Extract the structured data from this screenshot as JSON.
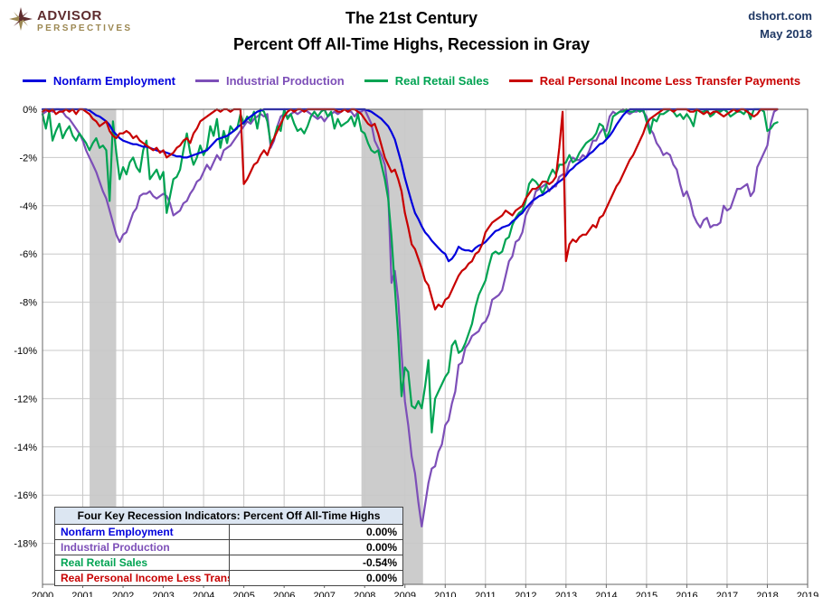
{
  "header": {
    "logo_line1": "ADVISOR",
    "logo_line2": "PERSPECTIVES",
    "title_line1": "The 21st Century",
    "title_line2": "Percent Off All-Time Highs, Recession in Gray",
    "source": "dshort.com",
    "date": "May 2018"
  },
  "inset": {
    "title": "Four Key Recession Indicators: Percent Off All-Time Highs",
    "rows": [
      {
        "label": "Nonfarm Employment",
        "value": "0.00%"
      },
      {
        "label": "Industrial Production",
        "value": "0.00%"
      },
      {
        "label": "Real Retail Sales",
        "value": "-0.54%"
      },
      {
        "label": "Real Personal Income Less Transfer Payments",
        "value": "0.00%"
      }
    ]
  },
  "chart_data": {
    "type": "line",
    "title": "The 21st Century — Percent Off All-Time Highs, Recession in Gray",
    "x_start": 2000,
    "points_per_year": 12,
    "x_range": [
      2000,
      2019
    ],
    "y_top": 0,
    "y_bottom": -19.7,
    "x_ticks": [
      2000,
      2001,
      2002,
      2003,
      2004,
      2005,
      2006,
      2007,
      2008,
      2009,
      2010,
      2011,
      2012,
      2013,
      2014,
      2015,
      2016,
      2017,
      2018,
      2019
    ],
    "y_ticks": [
      {
        "value": 0,
        "label": "0%"
      },
      {
        "value": -2,
        "label": "-2%"
      },
      {
        "value": -4,
        "label": "-4%"
      },
      {
        "value": -6,
        "label": "-6%"
      },
      {
        "value": -8,
        "label": "-8%"
      },
      {
        "value": -10,
        "label": "-10%"
      },
      {
        "value": -12,
        "label": "-12%"
      },
      {
        "value": -14,
        "label": "-14%"
      },
      {
        "value": -16,
        "label": "-16%"
      },
      {
        "value": -18,
        "label": "-18%"
      }
    ],
    "grid_color": "#c8c8c8",
    "border_color": "#666666",
    "recession_color": "#cccccc",
    "recession_bands": [
      [
        2001.17,
        2001.83
      ],
      [
        2007.92,
        2009.45
      ]
    ],
    "series_order": [
      1,
      2,
      0,
      3
    ],
    "series": [
      {
        "name": "Nonfarm Employment",
        "color": "#0000dd",
        "values": [
          0,
          0,
          0,
          0,
          0,
          0,
          0,
          0,
          0,
          0,
          0,
          0,
          0,
          0,
          -0.05,
          -0.15,
          -0.25,
          -0.3,
          -0.4,
          -0.5,
          -0.65,
          -0.9,
          -1.05,
          -1.2,
          -1.3,
          -1.35,
          -1.4,
          -1.45,
          -1.45,
          -1.5,
          -1.55,
          -1.55,
          -1.6,
          -1.65,
          -1.7,
          -1.75,
          -1.75,
          -1.8,
          -1.85,
          -1.9,
          -1.95,
          -1.95,
          -2,
          -2,
          -1.95,
          -1.9,
          -1.85,
          -1.8,
          -1.75,
          -1.7,
          -1.55,
          -1.4,
          -1.25,
          -1.2,
          -1.15,
          -1.1,
          -1,
          -0.9,
          -0.75,
          -0.65,
          -0.55,
          -0.4,
          -0.3,
          -0.2,
          -0.1,
          -0.05,
          0,
          0,
          0,
          0,
          0,
          0,
          0,
          0,
          0,
          0,
          0,
          0,
          0,
          0,
          0,
          0,
          0,
          0,
          0,
          0,
          0,
          0,
          0,
          0,
          0,
          0,
          0,
          0,
          0,
          0,
          0,
          -0.05,
          -0.1,
          -0.2,
          -0.3,
          -0.4,
          -0.55,
          -0.7,
          -0.95,
          -1.25,
          -1.75,
          -2.25,
          -2.85,
          -3.35,
          -3.85,
          -4.3,
          -4.55,
          -4.85,
          -5.1,
          -5.25,
          -5.45,
          -5.6,
          -5.75,
          -5.9,
          -6,
          -6.3,
          -6.2,
          -6,
          -5.7,
          -5.8,
          -5.85,
          -5.85,
          -5.9,
          -5.75,
          -5.65,
          -5.6,
          -5.5,
          -5.35,
          -5.2,
          -5.05,
          -5,
          -4.9,
          -4.85,
          -4.8,
          -4.65,
          -4.55,
          -4.4,
          -4.3,
          -4.1,
          -3.95,
          -3.8,
          -3.7,
          -3.6,
          -3.55,
          -3.45,
          -3.35,
          -3.25,
          -3.1,
          -3,
          -2.9,
          -2.75,
          -2.55,
          -2.45,
          -2.3,
          -2.2,
          -2.1,
          -2,
          -1.85,
          -1.75,
          -1.6,
          -1.45,
          -1.4,
          -1.25,
          -1.1,
          -0.9,
          -0.65,
          -0.45,
          -0.25,
          -0.1,
          0,
          0,
          0,
          0,
          0,
          0,
          0,
          0,
          0,
          0,
          0,
          0,
          0,
          0,
          0,
          0,
          0,
          0,
          0,
          0,
          0,
          0,
          0,
          0,
          0,
          0,
          0,
          0,
          0,
          0,
          0,
          0,
          0,
          0,
          0,
          0,
          0,
          0,
          0,
          0,
          0,
          0,
          0,
          0,
          0
        ]
      },
      {
        "name": "Industrial Production",
        "color": "#7d4fb8",
        "values": [
          -0.2,
          -0.1,
          0,
          -0.1,
          0,
          0,
          -0.1,
          -0.3,
          -0.4,
          -0.6,
          -0.8,
          -1,
          -1.3,
          -1.7,
          -2,
          -2.3,
          -2.6,
          -3,
          -3.4,
          -3.7,
          -4.2,
          -4.7,
          -5.2,
          -5.5,
          -5.2,
          -5.1,
          -4.7,
          -4.3,
          -4.1,
          -3.6,
          -3.5,
          -3.5,
          -3.4,
          -3.6,
          -3.7,
          -3.6,
          -3.5,
          -3.6,
          -3.9,
          -4.4,
          -4.3,
          -4.2,
          -3.9,
          -3.8,
          -3.5,
          -3.3,
          -3,
          -2.9,
          -2.6,
          -2.3,
          -2.5,
          -2.2,
          -1.9,
          -2.1,
          -1.7,
          -1.6,
          -1.5,
          -1.3,
          -1.1,
          -0.9,
          -0.7,
          -0.5,
          -0.6,
          -0.4,
          -0.3,
          -0.2,
          -0.3,
          -0.2,
          -1.6,
          -1.3,
          -0.7,
          -0.3,
          -0.2,
          -0.3,
          -0.2,
          -0.1,
          -0.2,
          -0.1,
          0,
          -0.1,
          -0.2,
          -0.3,
          -0.4,
          -0.3,
          -0.5,
          -0.3,
          -0.2,
          -0.1,
          -0.2,
          -0.1,
          0,
          -0.1,
          -0.1,
          -0.3,
          -0.1,
          -0.1,
          0,
          -0.3,
          -0.6,
          -1.3,
          -1.6,
          -1.9,
          -2.3,
          -3.4,
          -7.2,
          -6.7,
          -7.9,
          -10.1,
          -12.1,
          -13.1,
          -14.4,
          -15.1,
          -16.3,
          -17.3,
          -16.4,
          -15.5,
          -14.9,
          -14.8,
          -14.2,
          -13.9,
          -13.1,
          -12.9,
          -12.2,
          -11.7,
          -10.6,
          -10.5,
          -9.9,
          -9.7,
          -9.4,
          -9.3,
          -9.2,
          -8.9,
          -8.8,
          -8.5,
          -7.9,
          -7.8,
          -7.7,
          -7.5,
          -6.9,
          -6.3,
          -6.1,
          -5.5,
          -5.4,
          -5.1,
          -4.4,
          -4.1,
          -3.9,
          -3.4,
          -3.3,
          -3.2,
          -3.1,
          -3.4,
          -3.2,
          -3.2,
          -2.8,
          -2.7,
          -2.7,
          -2.2,
          -2,
          -2.1,
          -2.1,
          -1.9,
          -2,
          -1.7,
          -1.3,
          -1.3,
          -1,
          -0.8,
          -0.9,
          -0.3,
          -0.1,
          -0.2,
          -0.1,
          0,
          -0.1,
          -0.2,
          -0.1,
          -0.1,
          0,
          -0.1,
          -0.3,
          -0.8,
          -1,
          -1.4,
          -1.6,
          -1.9,
          -1.8,
          -1.9,
          -2.3,
          -2.5,
          -3.1,
          -3.6,
          -3.4,
          -3.8,
          -4.4,
          -4.7,
          -4.9,
          -4.6,
          -4.5,
          -4.9,
          -4.8,
          -4.8,
          -4.7,
          -4,
          -4.2,
          -4.1,
          -3.7,
          -3.3,
          -3.3,
          -3.2,
          -3.1,
          -3.6,
          -3.4,
          -2.4,
          -2.1,
          -1.8,
          -1.5,
          -0.6,
          -0.1,
          0
        ]
      },
      {
        "name": "Real Retail Sales",
        "color": "#00a352",
        "values": [
          -0.2,
          -0.8,
          -0.1,
          -1.3,
          -0.9,
          -0.6,
          -1.2,
          -0.9,
          -0.7,
          -1.1,
          -1.3,
          -1,
          -1.2,
          -1.4,
          -1.7,
          -1.4,
          -1.2,
          -1.6,
          -1.5,
          -1.7,
          -3.8,
          -0.5,
          -1.8,
          -2.9,
          -2.4,
          -2.7,
          -2.2,
          -2,
          -2.4,
          -2.6,
          -1.7,
          -1.3,
          -2.9,
          -2.7,
          -2.5,
          -2.9,
          -2.6,
          -4.3,
          -3.6,
          -2.9,
          -2.8,
          -2.5,
          -1.7,
          -1,
          -1.8,
          -2.3,
          -2,
          -1.5,
          -1.9,
          -1.6,
          -0.7,
          -1.1,
          -0.4,
          -1.6,
          -0.9,
          -1.4,
          -0.7,
          -0.9,
          -0.8,
          -0.2,
          -0.6,
          -0.3,
          -0.5,
          -0.1,
          -0.8,
          0,
          -0.1,
          -0.5,
          -1.4,
          -1.2,
          -0.7,
          -0.9,
          0,
          -0.4,
          -0.2,
          -0.6,
          -0.9,
          -0.8,
          -1,
          -0.7,
          -0.3,
          -0.1,
          -0.3,
          -0.1,
          0,
          -0.3,
          -0.1,
          -0.8,
          -0.4,
          -0.7,
          -0.6,
          -0.5,
          -0.3,
          -0.7,
          -0.2,
          -0.9,
          -1,
          -1.4,
          -1.7,
          -1.8,
          -1.7,
          -2.3,
          -2.9,
          -3.7,
          -5.3,
          -7.4,
          -9.4,
          -11.9,
          -10.7,
          -10.9,
          -12.3,
          -12.4,
          -12.1,
          -12.4,
          -11.5,
          -10.4,
          -13.4,
          -12,
          -11.7,
          -11.4,
          -11.1,
          -10.9,
          -9.8,
          -9.6,
          -10.1,
          -10,
          -9.7,
          -9.3,
          -8.9,
          -8.2,
          -7.7,
          -7.4,
          -7.1,
          -6.5,
          -6,
          -5.9,
          -6,
          -5.9,
          -5.4,
          -5.3,
          -4.8,
          -4.5,
          -4.3,
          -4.2,
          -3.8,
          -3.1,
          -2.9,
          -3,
          -3.2,
          -3.5,
          -3.2,
          -2.8,
          -2.5,
          -2.7,
          -2.3,
          -2.3,
          -2.2,
          -1.9,
          -2.2,
          -2.1,
          -1.8,
          -1.6,
          -1.4,
          -1.3,
          -1.2,
          -1,
          -0.6,
          -0.7,
          -1.2,
          -0.9,
          -0.3,
          -0.2,
          -0.1,
          -0.1,
          0,
          -0.1,
          -0.1,
          0,
          -0.1,
          0,
          -0.5,
          -1,
          -0.4,
          -0.5,
          -0.2,
          -0.2,
          -0.1,
          0,
          -0.1,
          -0.3,
          -0.2,
          -0.4,
          -0.2,
          -0.4,
          -0.7,
          0,
          -0.1,
          -0.1,
          0,
          -0.3,
          -0.2,
          0,
          -0.1,
          0,
          -0.1,
          -0.3,
          -0.2,
          -0.1,
          -0.1,
          -0.2,
          0,
          -0.4,
          0,
          0,
          0,
          -0.1,
          -0.9,
          -0.8,
          -0.6,
          -0.54
        ]
      },
      {
        "name": "Real Personal Income Less Transfer Payments",
        "color": "#c80000",
        "values": [
          -0.1,
          0,
          -0.1,
          0,
          -0.2,
          -0.1,
          -0.1,
          0,
          -0.1,
          0,
          -0.2,
          0,
          0,
          -0.1,
          -0.2,
          -0.4,
          -0.5,
          -0.7,
          -0.6,
          -0.5,
          -0.9,
          -1.1,
          -1.2,
          -1,
          -1,
          -0.9,
          -1,
          -1.2,
          -1.1,
          -1.3,
          -1.4,
          -1.5,
          -1.6,
          -1.7,
          -1.6,
          -1.8,
          -1.7,
          -2,
          -1.9,
          -1.8,
          -1.6,
          -1.5,
          -1.3,
          -1.2,
          -1.4,
          -1,
          -0.8,
          -0.5,
          -0.4,
          -0.3,
          -0.2,
          -0.1,
          0,
          -0.1,
          0,
          0,
          -0.1,
          0,
          0,
          0,
          -3.1,
          -2.9,
          -2.6,
          -2.3,
          -2.2,
          -1.9,
          -1.7,
          -1.9,
          -1.5,
          -1.2,
          -0.9,
          -0.6,
          -0.3,
          -0.1,
          0,
          -0.1,
          0,
          0,
          -0.1,
          0,
          0,
          0,
          0,
          0,
          0,
          0,
          0,
          0,
          -0.1,
          -0.1,
          0,
          -0.1,
          0,
          0,
          -0.1,
          -0.2,
          -0.4,
          -0.6,
          -0.7,
          -0.6,
          -1,
          -1.5,
          -2,
          -2.3,
          -2.6,
          -2.5,
          -2.9,
          -3.4,
          -4.3,
          -4.9,
          -5.6,
          -5.8,
          -6.2,
          -6.6,
          -7.1,
          -7.3,
          -7.8,
          -8.3,
          -8.1,
          -8.2,
          -7.9,
          -7.8,
          -7.5,
          -7.2,
          -6.9,
          -6.7,
          -6.6,
          -6.4,
          -6.3,
          -6,
          -5.9,
          -5.6,
          -5.1,
          -4.9,
          -4.7,
          -4.6,
          -4.5,
          -4.4,
          -4.2,
          -4.3,
          -4.4,
          -4.2,
          -4.1,
          -4,
          -3.7,
          -3.5,
          -3.3,
          -3.3,
          -3.2,
          -3,
          -3,
          -3.1,
          -3,
          -2.8,
          -1.6,
          -0.1,
          -6.3,
          -5.6,
          -5.4,
          -5.5,
          -5.3,
          -5.2,
          -5.2,
          -5,
          -4.8,
          -4.9,
          -4.5,
          -4.4,
          -4.1,
          -3.8,
          -3.5,
          -3.2,
          -3,
          -2.7,
          -2.4,
          -2.1,
          -1.9,
          -1.6,
          -1.3,
          -1,
          -0.6,
          -0.4,
          -0.3,
          -0.2,
          -0.1,
          0,
          0,
          0,
          -0.1,
          0,
          0,
          0,
          0,
          -0.1,
          -0.1,
          0,
          -0.1,
          -0.2,
          -0.1,
          -0.2,
          -0.1,
          -0.1,
          -0.2,
          -0.3,
          -0.2,
          -0.1,
          0,
          -0.1,
          0,
          0,
          -0.1,
          -0.2,
          -0.3,
          -0.2,
          0,
          0,
          0,
          0,
          0,
          0
        ]
      }
    ]
  }
}
